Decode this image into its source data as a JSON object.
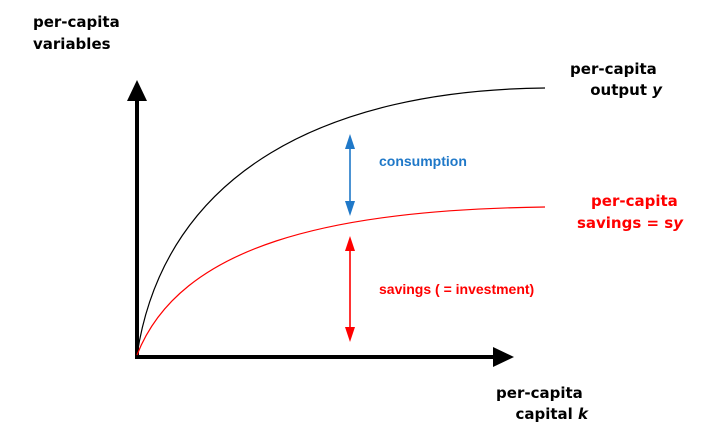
{
  "y_axis_label": [
    "per-capita",
    "variables"
  ],
  "x_axis_label": {
    "line1": "per-capita",
    "line2_prefix": "capital ",
    "line2_symbol": "k"
  },
  "output_curve_label": {
    "line1": "per-capita",
    "line2_prefix": "output ",
    "line2_symbol": "y"
  },
  "savings_curve_label": {
    "line1": "per-capita",
    "line2_prefix": "savings = s",
    "line2_symbol": "y"
  },
  "consumption_label": "consumption",
  "investment_label": "savings ( = investment)",
  "colors": {
    "axis": "#000000",
    "output_curve": "#000000",
    "savings_curve": "#ff0000",
    "consumption_arrow": "#1f78c8",
    "investment_arrow": "#ff0000"
  }
}
